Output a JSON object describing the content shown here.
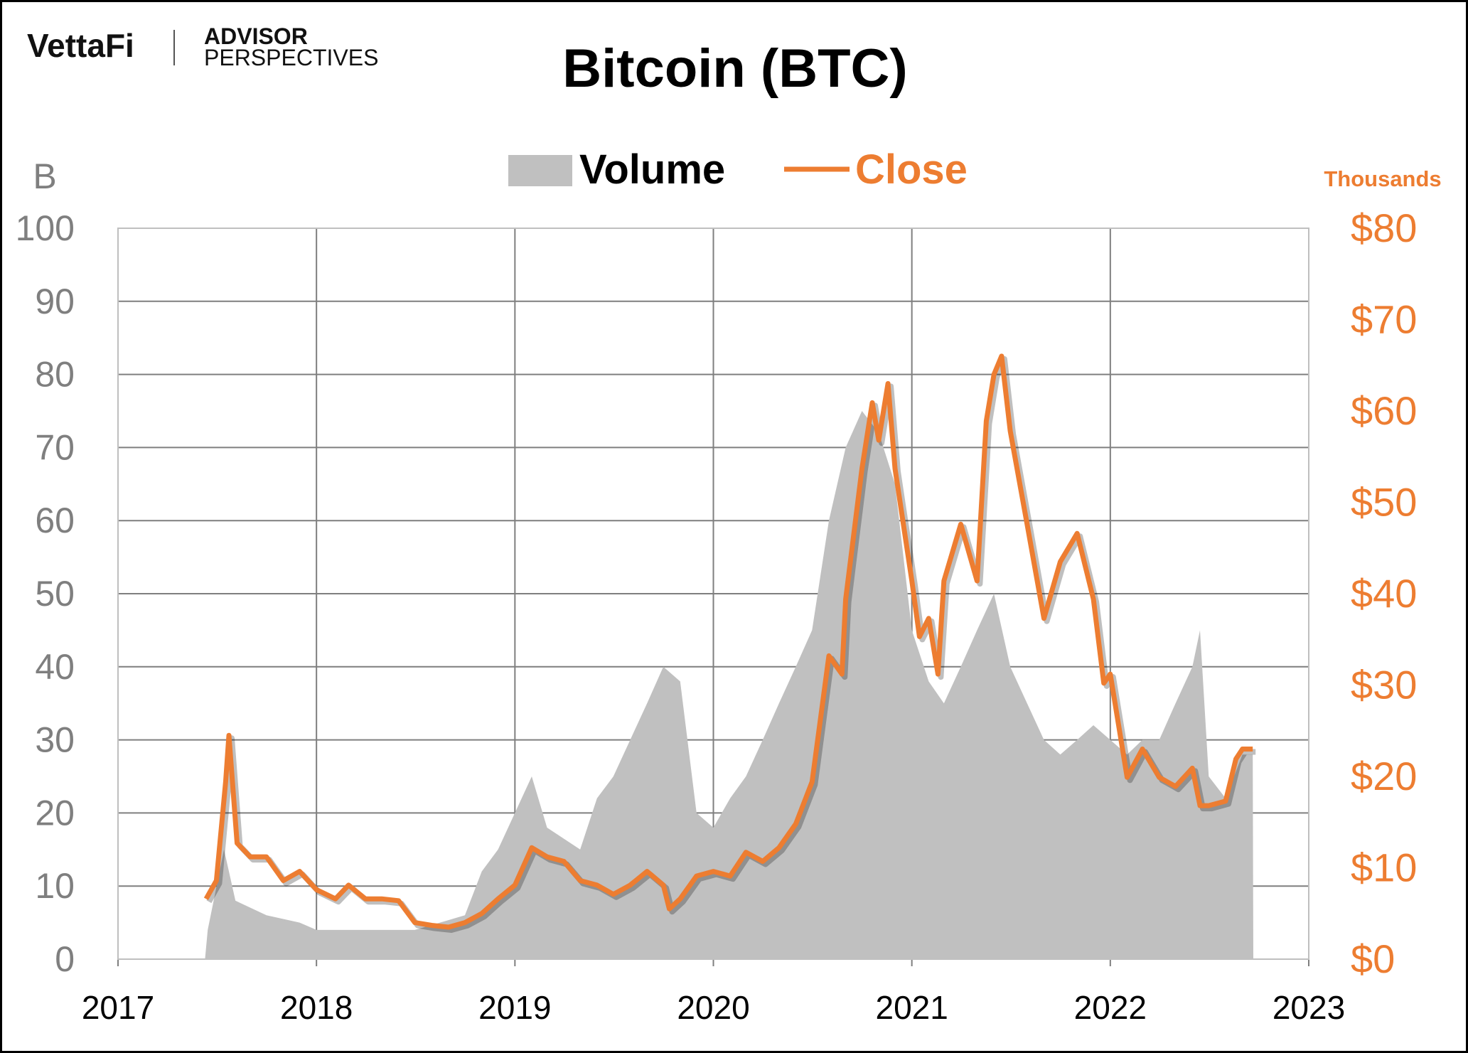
{
  "branding": {
    "logo_left": "VettaFi",
    "logo_right_top": "ADVISOR",
    "logo_right_bottom": "PERSPECTIVES"
  },
  "chart_data": {
    "type": "bar+line",
    "title": "Bitcoin (BTC)",
    "legend": [
      {
        "name": "Volume",
        "color": "#c0c0c0"
      },
      {
        "name": "Close",
        "color": "#ed7d31"
      }
    ],
    "legend_placement": "top",
    "grid": true,
    "x_ticks": [
      "2017",
      "2018",
      "2019",
      "2020",
      "2021",
      "2022",
      "2023"
    ],
    "xlim": [
      "2017-01-01",
      "2023-01-01"
    ],
    "y_left": {
      "unit_label": "B",
      "ticks": [
        "0",
        "10",
        "20",
        "30",
        "40",
        "50",
        "60",
        "70",
        "80",
        "90",
        "100"
      ],
      "ylim": [
        0,
        100
      ]
    },
    "y_right": {
      "unit_label": "Thousands",
      "ticks": [
        "$0",
        "$10",
        "$20",
        "$30",
        "$40",
        "$50",
        "$60",
        "$70",
        "$80"
      ],
      "ylim": [
        0,
        80
      ]
    },
    "colors": {
      "volume": "#c0c0c0",
      "close": "#ed7d31",
      "axis_left": "#7f7f7f",
      "grid": "#7f7f7f"
    },
    "volume": [
      [
        "2017-06-10",
        0
      ],
      [
        "2017-06-15",
        4
      ],
      [
        "2017-07-15",
        15
      ],
      [
        "2017-08-05",
        8
      ],
      [
        "2017-10-01",
        6
      ],
      [
        "2017-12-01",
        5
      ],
      [
        "2018-01-01",
        4
      ],
      [
        "2018-04-01",
        4
      ],
      [
        "2018-07-01",
        4
      ],
      [
        "2018-10-01",
        6
      ],
      [
        "2018-11-01",
        12
      ],
      [
        "2018-12-01",
        15
      ],
      [
        "2019-01-01",
        20
      ],
      [
        "2019-02-01",
        25
      ],
      [
        "2019-03-01",
        18
      ],
      [
        "2019-05-01",
        15
      ],
      [
        "2019-06-01",
        22
      ],
      [
        "2019-07-01",
        25
      ],
      [
        "2019-09-01",
        35
      ],
      [
        "2019-10-01",
        40
      ],
      [
        "2019-11-01",
        38
      ],
      [
        "2019-12-01",
        20
      ],
      [
        "2020-01-01",
        18
      ],
      [
        "2020-02-01",
        22
      ],
      [
        "2020-03-01",
        25
      ],
      [
        "2020-04-01",
        30
      ],
      [
        "2020-05-01",
        35
      ],
      [
        "2020-06-01",
        40
      ],
      [
        "2020-07-01",
        45
      ],
      [
        "2020-08-01",
        60
      ],
      [
        "2020-09-01",
        70
      ],
      [
        "2020-10-01",
        75
      ],
      [
        "2020-11-01",
        72
      ],
      [
        "2020-12-01",
        65
      ],
      [
        "2021-01-01",
        45
      ],
      [
        "2021-02-01",
        38
      ],
      [
        "2021-03-01",
        35
      ],
      [
        "2021-04-01",
        40
      ],
      [
        "2021-05-01",
        45
      ],
      [
        "2021-06-01",
        50
      ],
      [
        "2021-07-01",
        40
      ],
      [
        "2021-08-01",
        35
      ],
      [
        "2021-09-01",
        30
      ],
      [
        "2021-10-01",
        28
      ],
      [
        "2021-11-01",
        30
      ],
      [
        "2021-12-01",
        32
      ],
      [
        "2022-01-01",
        30
      ],
      [
        "2022-02-01",
        28
      ],
      [
        "2022-03-01",
        30
      ],
      [
        "2022-04-01",
        30
      ],
      [
        "2022-05-01",
        35
      ],
      [
        "2022-06-01",
        40
      ],
      [
        "2022-06-15",
        45
      ],
      [
        "2022-07-01",
        25
      ],
      [
        "2022-08-01",
        22
      ],
      [
        "2022-09-01",
        28
      ],
      [
        "2022-09-20",
        28
      ],
      [
        "2022-09-21",
        0
      ]
    ],
    "close": [
      [
        "2017-06-12",
        6.6
      ],
      [
        "2017-07-01",
        8.6
      ],
      [
        "2017-07-18",
        19.4
      ],
      [
        "2017-07-24",
        24.5
      ],
      [
        "2017-08-08",
        12.7
      ],
      [
        "2017-09-01",
        11.2
      ],
      [
        "2017-10-01",
        11.2
      ],
      [
        "2017-11-01",
        8.6
      ],
      [
        "2017-12-01",
        9.6
      ],
      [
        "2018-01-01",
        7.6
      ],
      [
        "2018-02-05",
        6.6
      ],
      [
        "2018-03-01",
        8.1
      ],
      [
        "2018-04-01",
        6.6
      ],
      [
        "2018-05-01",
        6.6
      ],
      [
        "2018-06-01",
        6.4
      ],
      [
        "2018-07-01",
        4.0
      ],
      [
        "2018-08-01",
        3.7
      ],
      [
        "2018-09-01",
        3.5
      ],
      [
        "2018-10-01",
        4.0
      ],
      [
        "2018-11-01",
        5.0
      ],
      [
        "2018-12-01",
        6.6
      ],
      [
        "2019-01-01",
        8.1
      ],
      [
        "2019-02-01",
        12.2
      ],
      [
        "2019-03-01",
        11.2
      ],
      [
        "2019-04-01",
        10.7
      ],
      [
        "2019-05-01",
        8.6
      ],
      [
        "2019-06-01",
        8.1
      ],
      [
        "2019-07-01",
        7.1
      ],
      [
        "2019-08-01",
        8.1
      ],
      [
        "2019-09-01",
        9.6
      ],
      [
        "2019-10-01",
        8.1
      ],
      [
        "2019-10-12",
        5.5
      ],
      [
        "2019-11-01",
        6.6
      ],
      [
        "2019-12-01",
        9.1
      ],
      [
        "2020-01-01",
        9.6
      ],
      [
        "2020-02-01",
        9.1
      ],
      [
        "2020-03-01",
        11.7
      ],
      [
        "2020-04-01",
        10.7
      ],
      [
        "2020-05-01",
        12.2
      ],
      [
        "2020-06-01",
        14.8
      ],
      [
        "2020-07-01",
        19.4
      ],
      [
        "2020-08-01",
        33.2
      ],
      [
        "2020-08-25",
        31.2
      ],
      [
        "2020-09-01",
        39.4
      ],
      [
        "2020-10-01",
        53.7
      ],
      [
        "2020-10-20",
        60.9
      ],
      [
        "2020-11-01",
        56.8
      ],
      [
        "2020-11-18",
        63.0
      ],
      [
        "2020-12-01",
        53.7
      ],
      [
        "2021-01-01",
        41.4
      ],
      [
        "2021-01-15",
        35.3
      ],
      [
        "2021-02-01",
        37.3
      ],
      [
        "2021-02-18",
        31.2
      ],
      [
        "2021-03-01",
        41.4
      ],
      [
        "2021-04-01",
        47.6
      ],
      [
        "2021-05-01",
        41.4
      ],
      [
        "2021-05-18",
        58.9
      ],
      [
        "2021-06-01",
        64.0
      ],
      [
        "2021-06-15",
        66.0
      ],
      [
        "2021-07-01",
        57.8
      ],
      [
        "2021-08-01",
        47.6
      ],
      [
        "2021-09-01",
        37.3
      ],
      [
        "2021-10-01",
        43.5
      ],
      [
        "2021-11-01",
        46.6
      ],
      [
        "2021-12-01",
        39.4
      ],
      [
        "2021-12-20",
        30.2
      ],
      [
        "2022-01-01",
        31.2
      ],
      [
        "2022-02-01",
        19.9
      ],
      [
        "2022-03-01",
        23.0
      ],
      [
        "2022-04-01",
        19.9
      ],
      [
        "2022-05-01",
        18.9
      ],
      [
        "2022-06-01",
        20.9
      ],
      [
        "2022-06-15",
        16.8
      ],
      [
        "2022-07-01",
        16.8
      ],
      [
        "2022-08-01",
        17.3
      ],
      [
        "2022-08-20",
        21.9
      ],
      [
        "2022-09-01",
        23.0
      ],
      [
        "2022-09-20",
        23.0
      ]
    ]
  }
}
